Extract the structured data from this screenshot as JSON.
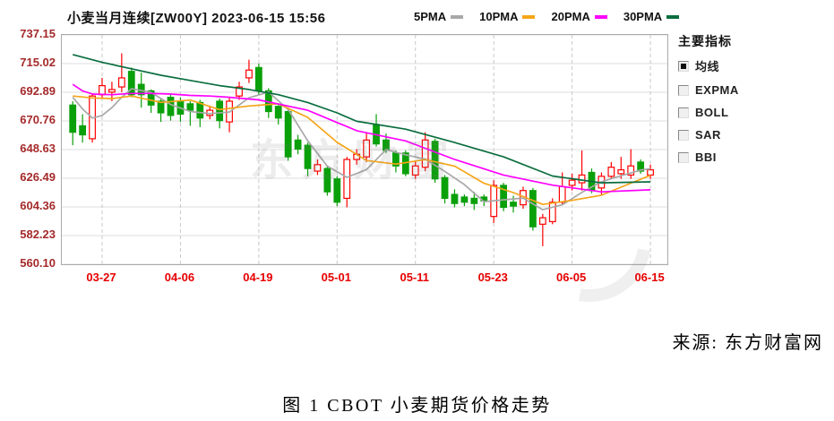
{
  "header": {
    "title": "小麦当月连续[ZW00Y] 2023-06-15 15:56"
  },
  "legend": [
    {
      "label": "5PMA",
      "color": "#a8a8a8"
    },
    {
      "label": "10PMA",
      "color": "#f5a518"
    },
    {
      "label": "20PMA",
      "color": "#ff00ff"
    },
    {
      "label": "30PMA",
      "color": "#0a6e3f"
    }
  ],
  "sidebar": {
    "title": "主要指标",
    "items": [
      {
        "label": "均线",
        "checked": true
      },
      {
        "label": "EXPMA",
        "checked": false
      },
      {
        "label": "BOLL",
        "checked": false
      },
      {
        "label": "SAR",
        "checked": false
      },
      {
        "label": "BBI",
        "checked": false
      }
    ]
  },
  "watermark": "东方财富",
  "source_note": "来源: 东方财富网",
  "caption": "图 1 CBOT 小麦期货价格走势",
  "chart_data": {
    "type": "candlestick",
    "title": "小麦当月连续[ZW00Y] 2023-06-15 15:56",
    "ylim": [
      560.1,
      737.15
    ],
    "y_ticks": [
      "737.15",
      "715.02",
      "692.89",
      "670.76",
      "648.63",
      "626.49",
      "604.36",
      "582.23",
      "560.10"
    ],
    "x_tick_labels": [
      "03-27",
      "04-06",
      "04-19",
      "05-01",
      "05-11",
      "05-23",
      "06-05",
      "06-15"
    ],
    "x_tick_indices": [
      3,
      11,
      19,
      27,
      35,
      43,
      51,
      59
    ],
    "grid": true,
    "legend_position": "top-right",
    "colors": {
      "up": "#ff0000",
      "down": "#0aa00a",
      "y_label": "#a52a2a",
      "x_label": "#e60000",
      "border": "#aaaaaa",
      "hgrid": "#dddddd",
      "vgrid": "#c8c8c8"
    },
    "candle_fields": [
      "date",
      "open",
      "high",
      "low",
      "close"
    ],
    "candles": [
      [
        "03-22",
        683,
        686,
        652,
        662
      ],
      [
        "03-23",
        667,
        676,
        654,
        660
      ],
      [
        "03-24",
        657,
        692,
        654,
        690
      ],
      [
        "03-27",
        691,
        704,
        688,
        698
      ],
      [
        "03-28",
        693,
        701,
        686,
        695
      ],
      [
        "03-29",
        697,
        723,
        693,
        704
      ],
      [
        "03-30",
        709,
        712,
        689,
        691
      ],
      [
        "03-31",
        699,
        708,
        681,
        691
      ],
      [
        "04-03",
        694,
        695,
        677,
        683
      ],
      [
        "04-04",
        686,
        688,
        670,
        677
      ],
      [
        "04-05",
        689,
        691,
        671,
        675
      ],
      [
        "04-06",
        686,
        689,
        670,
        676
      ],
      [
        "04-10",
        684,
        686,
        667,
        679
      ],
      [
        "04-11",
        685,
        687,
        666,
        673
      ],
      [
        "04-12",
        675,
        682,
        672,
        679
      ],
      [
        "04-13",
        686,
        688,
        665,
        671
      ],
      [
        "04-14",
        670,
        689,
        662,
        686
      ],
      [
        "04-17",
        690,
        701,
        687,
        697
      ],
      [
        "04-18",
        704,
        718,
        700,
        710
      ],
      [
        "04-19",
        712,
        715,
        691,
        694
      ],
      [
        "04-20",
        694,
        696,
        673,
        678
      ],
      [
        "04-21",
        682,
        683,
        668,
        673
      ],
      [
        "04-24",
        678,
        680,
        640,
        643
      ],
      [
        "04-25",
        656,
        660,
        645,
        649
      ],
      [
        "04-26",
        652,
        654,
        628,
        634
      ],
      [
        "04-27",
        632,
        641,
        629,
        637
      ],
      [
        "04-28",
        634,
        636,
        613,
        616
      ],
      [
        "05-01",
        626,
        628,
        605,
        608
      ],
      [
        "05-02",
        611,
        643,
        604,
        641
      ],
      [
        "05-03",
        641,
        649,
        637,
        645
      ],
      [
        "05-04",
        643,
        662,
        639,
        656
      ],
      [
        "05-05",
        668,
        676,
        651,
        653
      ],
      [
        "05-08",
        656,
        661,
        646,
        648
      ],
      [
        "05-09",
        646,
        648,
        631,
        636
      ],
      [
        "05-10",
        646,
        648,
        628,
        630
      ],
      [
        "05-11",
        629,
        640,
        626,
        636
      ],
      [
        "05-12",
        635,
        662,
        632,
        656
      ],
      [
        "05-15",
        655,
        657,
        623,
        626
      ],
      [
        "05-16",
        627,
        629,
        607,
        611
      ],
      [
        "05-17",
        614,
        618,
        604,
        607
      ],
      [
        "05-18",
        612,
        614,
        605,
        608
      ],
      [
        "05-19",
        611,
        616,
        602,
        607
      ],
      [
        "05-22",
        612,
        614,
        605,
        609
      ],
      [
        "05-23",
        597,
        625,
        592,
        621
      ],
      [
        "05-24",
        621,
        623,
        601,
        604
      ],
      [
        "05-25",
        608,
        613,
        600,
        605
      ],
      [
        "05-26",
        606,
        620,
        603,
        617
      ],
      [
        "05-30",
        617,
        619,
        586,
        589
      ],
      [
        "05-31",
        591,
        599,
        574,
        596
      ],
      [
        "06-01",
        593,
        611,
        591,
        608
      ],
      [
        "06-02",
        608,
        631,
        606,
        620
      ],
      [
        "06-05",
        621,
        630,
        617,
        625
      ],
      [
        "06-06",
        623,
        648,
        617,
        629
      ],
      [
        "06-07",
        631,
        634,
        615,
        617
      ],
      [
        "06-08",
        619,
        631,
        614,
        628
      ],
      [
        "06-09",
        628,
        639,
        626,
        635
      ],
      [
        "06-12",
        630,
        643,
        626,
        633
      ],
      [
        "06-13",
        629,
        649,
        626,
        636
      ],
      [
        "06-14",
        639,
        641,
        630,
        632
      ],
      [
        "06-15",
        629,
        637,
        626,
        633
      ]
    ],
    "ma_lines": [
      {
        "name": "5PMA",
        "color": "#a8a8a8",
        "points": [
          [
            0,
            689
          ],
          [
            1,
            680
          ],
          [
            2,
            673
          ],
          [
            3,
            675
          ],
          [
            4,
            681
          ],
          [
            5,
            689
          ],
          [
            6,
            695.6
          ],
          [
            8,
            692.8
          ],
          [
            10,
            683.4
          ],
          [
            12,
            678
          ],
          [
            14,
            676.4
          ],
          [
            16,
            677.6
          ],
          [
            18,
            688.6
          ],
          [
            20,
            693
          ],
          [
            22,
            679.6
          ],
          [
            24,
            655.4
          ],
          [
            26,
            635.8
          ],
          [
            28,
            627.2
          ],
          [
            30,
            633.2
          ],
          [
            32,
            648.6
          ],
          [
            34,
            644.6
          ],
          [
            36,
            641.2
          ],
          [
            38,
            631.8
          ],
          [
            40,
            621.6
          ],
          [
            42,
            608.4
          ],
          [
            44,
            609.8
          ],
          [
            46,
            611.2
          ],
          [
            48,
            602.2
          ],
          [
            50,
            606
          ],
          [
            52,
            615.6
          ],
          [
            54,
            623.8
          ],
          [
            56,
            628.4
          ],
          [
            58,
            632.8
          ],
          [
            59,
            633.8
          ]
        ]
      },
      {
        "name": "10PMA",
        "color": "#f5a518",
        "points": [
          [
            0,
            690
          ],
          [
            2,
            688.5
          ],
          [
            4,
            688
          ],
          [
            6,
            690
          ],
          [
            9,
            685.1
          ],
          [
            12,
            686.9
          ],
          [
            15,
            679.5
          ],
          [
            18,
            682.3
          ],
          [
            21,
            684
          ],
          [
            24,
            673.5
          ],
          [
            27,
            654.2
          ],
          [
            30,
            640.2
          ],
          [
            33,
            637.4
          ],
          [
            36,
            640.9
          ],
          [
            39,
            635.9
          ],
          [
            42,
            622.6
          ],
          [
            45,
            615.4
          ],
          [
            48,
            606.3
          ],
          [
            51,
            609.4
          ],
          [
            54,
            613.4
          ],
          [
            57,
            622.7
          ],
          [
            59,
            628.8
          ]
        ]
      },
      {
        "name": "20PMA",
        "color": "#ff00ff",
        "points": [
          [
            0,
            699
          ],
          [
            1,
            694
          ],
          [
            2,
            691.5
          ],
          [
            4,
            691
          ],
          [
            6,
            692
          ],
          [
            8,
            692
          ],
          [
            10,
            691.5
          ],
          [
            12,
            690.5
          ],
          [
            14,
            690
          ],
          [
            16,
            689
          ],
          [
            19,
            687
          ],
          [
            24,
            679
          ],
          [
            29,
            663.2
          ],
          [
            34,
            655.3
          ],
          [
            39,
            641
          ],
          [
            44,
            629
          ],
          [
            49,
            621.2
          ],
          [
            54,
            616
          ],
          [
            59,
            617.6
          ]
        ]
      },
      {
        "name": "30PMA",
        "color": "#0a6e3f",
        "points": [
          [
            0,
            722
          ],
          [
            3,
            716
          ],
          [
            6,
            711
          ],
          [
            9,
            706
          ],
          [
            12,
            702
          ],
          [
            15,
            698
          ],
          [
            18,
            695
          ],
          [
            21,
            691
          ],
          [
            24,
            685
          ],
          [
            27,
            677
          ],
          [
            29,
            670.5
          ],
          [
            34,
            664.4
          ],
          [
            39,
            654.1
          ],
          [
            44,
            643
          ],
          [
            49,
            628.2
          ],
          [
            54,
            623
          ],
          [
            59,
            623.7
          ]
        ]
      }
    ]
  }
}
